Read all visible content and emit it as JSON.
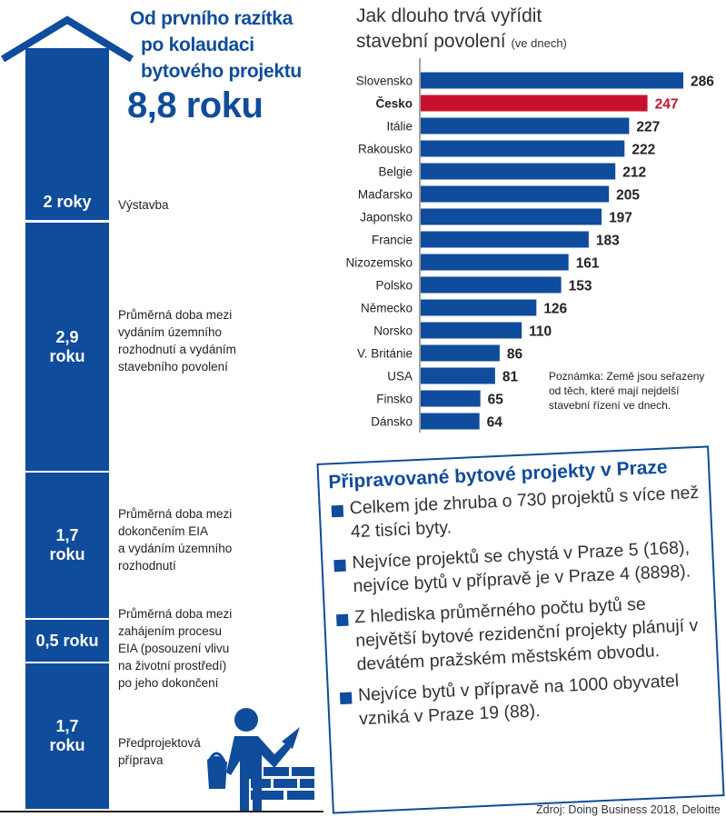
{
  "left": {
    "title_lines": [
      "Od prvního razítka",
      "po kolaudaci",
      "bytového projektu"
    ],
    "total": "8,8 roku",
    "segments": [
      {
        "value": "2 roky",
        "value_years": 2,
        "label": "Výstavba"
      },
      {
        "value": "2,9 roku",
        "value_years": 2.9,
        "label_lines": [
          "Průměrná doba mezi",
          "vydáním územního",
          "rozhodnutí a vydáním",
          "stavebního povolení"
        ]
      },
      {
        "value": "1,7 roku",
        "value_years": 1.7,
        "label_lines": [
          "Průměrná doba mezi",
          "dokončením EIA",
          "a vydáním územního",
          "rozhodnutí"
        ]
      },
      {
        "value": "0,5 roku",
        "value_years": 0.5,
        "label_lines": [
          "Průměrná doba mezi",
          "zahájením procesu",
          "EIA (posouzení vlivu",
          "na životní prostředí)",
          "po jeho dokončení"
        ]
      },
      {
        "value": "1,7 roku",
        "value_years": 1.7,
        "label_lines": [
          "Předprojektová",
          "příprava"
        ]
      }
    ],
    "icons": [
      "house-roof-icon",
      "construction-worker-icon"
    ]
  },
  "chart_data": {
    "type": "bar",
    "orientation": "horizontal",
    "title": "Jak dlouho trvá vyřídit stavební povolení",
    "title_lines": [
      "Jak dlouho trvá vyřídit",
      "stavební povolení"
    ],
    "unit": "(ve dnech)",
    "categories": [
      "Slovensko",
      "Česko",
      "Itálie",
      "Rakousko",
      "Belgie",
      "Maďarsko",
      "Japonsko",
      "Francie",
      "Nizozemsko",
      "Polsko",
      "Německo",
      "Norsko",
      "V. Británie",
      "USA",
      "Finsko",
      "Dánsko"
    ],
    "values": [
      286,
      247,
      227,
      222,
      212,
      205,
      197,
      183,
      161,
      153,
      126,
      110,
      86,
      81,
      65,
      64
    ],
    "highlight": "Česko",
    "colors": {
      "default": "#0f4c9c",
      "highlight": "#c8102e"
    },
    "xlim": [
      0,
      286
    ],
    "grid": false,
    "note_lines": [
      "Poznámka: Země jsou seřazeny",
      "od těch, které mají nejdelší",
      "stavební řízení ve dnech."
    ]
  },
  "box": {
    "title": "Připravované bytové projekty v Praze",
    "bullets": [
      "Celkem jde zhruba o 730 projektů s více než 42 tisíci byty.",
      "Nejvíce projektů se chystá v Praze 5 (168), nejvíce bytů v přípravě je v Praze 4 (8898).",
      "Z hlediska průměrného počtu bytů se největší bytové rezidenční projekty plánují v devátém pražském městském obvodu.",
      "Nejvíce bytů v přípravě na 1000 obyvatel vzniká v Praze 19 (88)."
    ]
  },
  "source": "Zdroj: Doing Business 2018, Deloitte"
}
